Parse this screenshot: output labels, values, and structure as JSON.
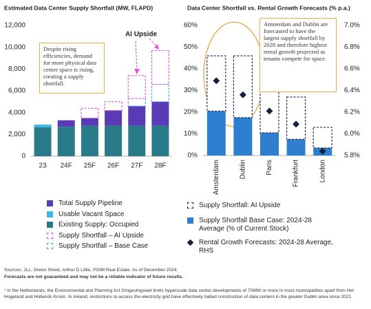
{
  "charts": [
    {
      "type": "bar",
      "stacked": true,
      "title": "Estimated Data Center Supply Shortfall (MW, FLAPD)",
      "categories": [
        "23",
        "24F",
        "25F",
        "26F",
        "27F",
        "28F"
      ],
      "series": [
        {
          "name": "Existing Supply: Occupied",
          "color": "#2a7b8a",
          "dashed": false,
          "values": [
            2650,
            2700,
            2800,
            2800,
            2800,
            2800
          ]
        },
        {
          "name": "Usable Vacant Space",
          "color": "#3cb8e6",
          "dashed": false,
          "values": [
            250,
            0,
            0,
            0,
            0,
            0
          ]
        },
        {
          "name": "Total Supply Pipeline",
          "color": "#5b3bb5",
          "dashed": false,
          "values": [
            0,
            600,
            700,
            1400,
            1800,
            2200
          ]
        },
        {
          "name": "Supply Shortfall – Base Case",
          "color": "#4aa3df",
          "dashed": true,
          "values": [
            0,
            0,
            0,
            0,
            700,
            1600
          ]
        },
        {
          "name": "Supply Shortfall – AI Upside",
          "color": "#d65ad6",
          "dashed": true,
          "values": [
            0,
            0,
            900,
            800,
            2100,
            3100
          ]
        }
      ],
      "ylim": [
        0,
        12000
      ],
      "yticks": [
        0,
        {
          "value": 2000,
          "label": "2,000"
        },
        {
          "value": 4000,
          "label": "4,000"
        },
        {
          "value": 6000,
          "label": "6,000"
        },
        {
          "value": 8000,
          "label": "8,000"
        },
        {
          "value": 10000,
          "label": "10,000"
        },
        {
          "value": 12000,
          "label": "12,000"
        }
      ],
      "annotation": "Despite rising efficiencies, demand for more physical data center space is rising, creating a supply shortfall.",
      "callout": "AI Upside"
    },
    {
      "type": "bar",
      "stacked": true,
      "title": "Data Center Shortfall vs. Rental Growth Forecasts (% p.a.)",
      "categories": [
        "Amsterdam",
        "Dublin",
        "Paris",
        "Frankfurt",
        "London"
      ],
      "series": [
        {
          "name": "Supply Shortfall Base Case: 2024-28 Average (% of Current Stock)",
          "color": "#2f7fd0",
          "dashed": false,
          "values": [
            20.5,
            17.5,
            10.5,
            7.5,
            3.5
          ]
        },
        {
          "name": "Supply Shortfall: AI Upside",
          "color": "#1a2a5a",
          "dashed": true,
          "values": [
            25.5,
            28.5,
            24.5,
            19.5,
            9.5
          ]
        },
        {
          "name": "Rental Growth Forecasts: 2024-28 Average, RHS",
          "color": "#14213d",
          "axis": "y2",
          "marker": "diamond",
          "values": [
            6.49,
            6.36,
            6.21,
            6.09,
            5.84
          ]
        }
      ],
      "ylim": [
        0,
        60
      ],
      "yticks": [
        {
          "value": 0,
          "label": "0%"
        },
        {
          "value": 10,
          "label": "10%"
        },
        {
          "value": 20,
          "label": "20%"
        },
        {
          "value": 30,
          "label": "30%"
        },
        {
          "value": 40,
          "label": "40%"
        },
        {
          "value": 50,
          "label": "50%"
        },
        {
          "value": 60,
          "label": "60%"
        }
      ],
      "y2lim": [
        5.8,
        7.0
      ],
      "y2ticks": [
        {
          "value": 5.8,
          "label": "5.8%"
        },
        {
          "value": 6.0,
          "label": "6.0%"
        },
        {
          "value": 6.2,
          "label": "6.2%"
        },
        {
          "value": 6.4,
          "label": "6.4%"
        },
        {
          "value": 6.6,
          "label": "6.6%"
        },
        {
          "value": 6.8,
          "label": "6.8%"
        },
        {
          "value": 7.0,
          "label": "7.0%"
        }
      ],
      "annotation": "Amsterdam and Dublin are forecasted to have the largest supply shortfall by 2028 and therefore highest rental growth projected as tenants compete for space."
    }
  ],
  "footer": {
    "sources": "Sources: JLL, Green Street, Arthur D Little, PGIM Real Estate. As of December 2024.",
    "disclaimer": "Forecasts are not guaranteed and may not be a reliable indicator of future results.",
    "footnote": "¹ In the Netherlands, the Environmental and Planning Act Omgevingswet limits hyperscale data center developments of 70MW or more in most municipalities apart from Het Hogeland and Hollands Kroon. In Ireland, restrictions to access the electricity grid have effectively halted construction of data centers in the greater Dublin area since 2021."
  }
}
